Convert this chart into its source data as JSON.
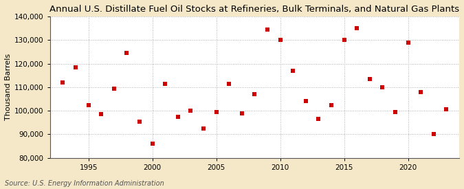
{
  "title": "Annual U.S. Distillate Fuel Oil Stocks at Refineries, Bulk Terminals, and Natural Gas Plants",
  "ylabel": "Thousand Barrels",
  "source": "Source: U.S. Energy Information Administration",
  "fig_bg_color": "#f5e8c8",
  "plot_bg_color": "#ffffff",
  "marker_color": "#cc0000",
  "marker_size": 4,
  "ylim": [
    80000,
    140000
  ],
  "yticks": [
    80000,
    90000,
    100000,
    110000,
    120000,
    130000,
    140000
  ],
  "years": [
    1993,
    1994,
    1995,
    1996,
    1997,
    1998,
    1999,
    2000,
    2001,
    2002,
    2003,
    2004,
    2005,
    2006,
    2007,
    2008,
    2009,
    2010,
    2011,
    2012,
    2013,
    2014,
    2015,
    2016,
    2017,
    2018,
    2019,
    2020,
    2021,
    2022,
    2023
  ],
  "values": [
    112000,
    118500,
    102500,
    98500,
    109500,
    124500,
    95500,
    86000,
    111500,
    97500,
    100000,
    92500,
    99500,
    111500,
    99000,
    107000,
    134500,
    130000,
    117000,
    104000,
    96500,
    102500,
    130000,
    135000,
    113500,
    110000,
    99500,
    129000,
    108000,
    90000,
    100500
  ],
  "xlim": [
    1992,
    2024
  ],
  "xticks": [
    1995,
    2000,
    2005,
    2010,
    2015,
    2020
  ],
  "grid_color": "#b0b0b0",
  "title_fontsize": 9.5,
  "ylabel_fontsize": 8,
  "tick_fontsize": 7.5,
  "source_fontsize": 7
}
